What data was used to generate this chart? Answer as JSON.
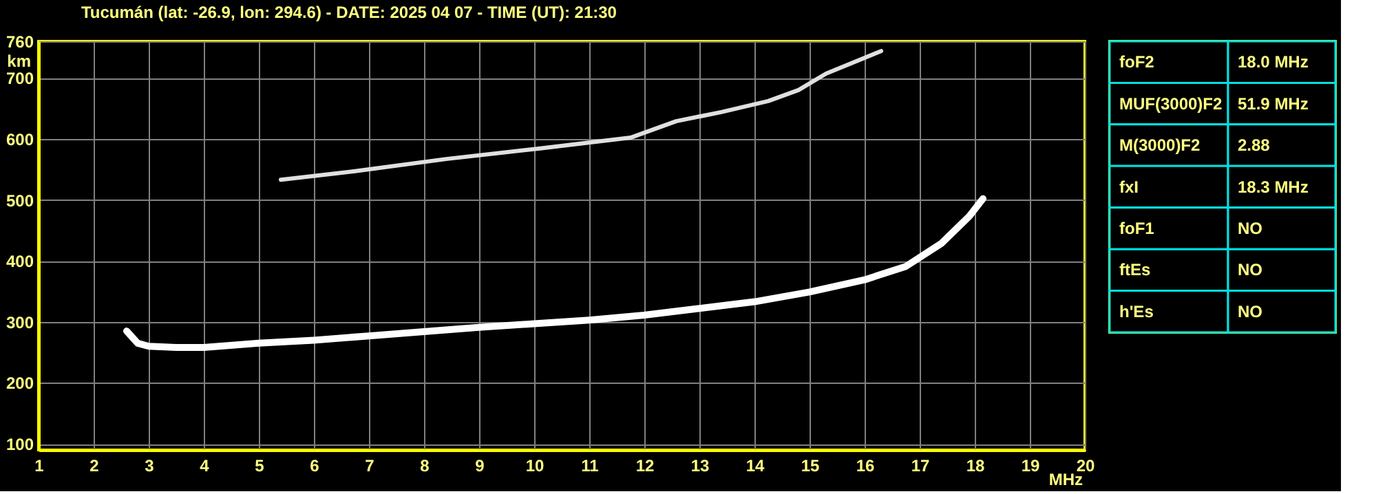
{
  "chart_data": [
    {
      "type": "line",
      "title": "Tucumán (lat: -26.9, lon: 294.6) - DATE: 2025 04 07 - TIME (UT): 21:30",
      "xlabel": "MHz",
      "ylabel": "km",
      "series": [
        {
          "color": "#ffffff",
          "x": [
            2.6,
            2.8,
            3.0,
            3.5,
            4,
            5,
            6,
            7,
            8,
            9,
            10,
            11,
            12,
            13,
            14,
            15,
            16,
            16.75,
            17.4,
            17.9,
            18.15
          ],
          "values": [
            285,
            265,
            260,
            258,
            258,
            265,
            270,
            277,
            284,
            291,
            297,
            303,
            311,
            322,
            333,
            349,
            369,
            391,
            429,
            473,
            502
          ]
        },
        {
          "color": "#e0e0e0",
          "x": [
            5.4,
            6.75,
            8.4,
            10.08,
            11.75,
            12.58,
            13.4,
            14.25,
            14.8,
            15.3,
            16.3
          ],
          "values": [
            533,
            547,
            567,
            584,
            602,
            629,
            644,
            662,
            680,
            707,
            744
          ]
        }
      ],
      "xlim": [
        1,
        20
      ],
      "xticks": [
        1,
        2,
        3,
        4,
        5,
        6,
        7,
        8,
        9,
        10,
        11,
        12,
        13,
        14,
        15,
        16,
        17,
        18,
        19,
        20
      ],
      "ylim": [
        90,
        760
      ],
      "yticks": [
        100,
        200,
        300,
        400,
        500,
        600,
        700,
        760
      ],
      "grid": true,
      "marker": "none",
      "line_style": "solid"
    },
    {
      "type": "other",
      "annotations": [
        "foF2",
        "18.0 MHz",
        "MUF(3000)F2",
        "51.9 MHz",
        "M(3000)F2",
        "2.88",
        "fxI",
        "18.3 MHz",
        "foF1",
        "NO",
        "ftEs",
        "NO",
        "h'Es",
        "NO"
      ]
    }
  ]
}
